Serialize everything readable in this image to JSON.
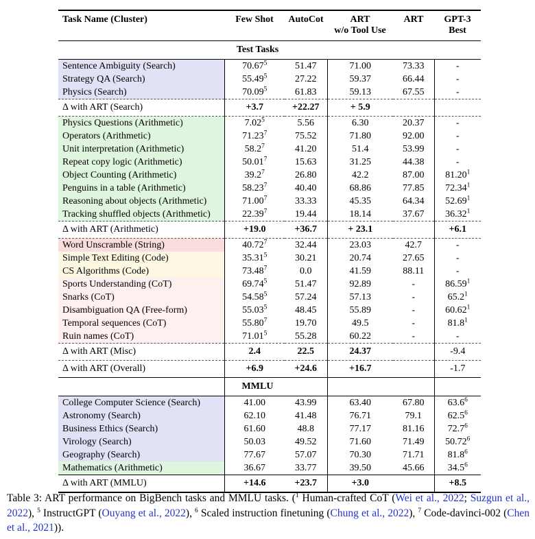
{
  "colors": {
    "search": "#e2e2f6",
    "arithmetic": "#e0f5e0",
    "string": "#fadcdc",
    "code": "#fcf8e2",
    "cot": "#fdf0ee",
    "link": "#2533cb"
  },
  "table": {
    "columns": [
      {
        "label": "Task Name (Cluster)"
      },
      {
        "label": "Few Shot"
      },
      {
        "label": "AutoCot"
      },
      {
        "label": "ART",
        "label2": "w/o Tool Use"
      },
      {
        "label": "ART"
      },
      {
        "label": "GPT-3",
        "label2": "Best"
      }
    ],
    "rows": [
      {
        "type": "section",
        "label": "Test Tasks",
        "vlines": false,
        "sep": "solid"
      },
      {
        "type": "data",
        "task": "Sentence Ambiguity (Search)",
        "bg": "search",
        "cells": [
          {
            "v": "70.67",
            "sup": "5"
          },
          {
            "v": "51.47"
          },
          {
            "v": "71.00"
          },
          {
            "v": "73.33"
          },
          {
            "v": "-"
          }
        ]
      },
      {
        "type": "data",
        "task": "Strategy QA (Search)",
        "bg": "search",
        "cells": [
          {
            "v": "55.49",
            "sup": "5"
          },
          {
            "v": "27.22"
          },
          {
            "v": "59.37"
          },
          {
            "v": "66.44"
          },
          {
            "v": "-"
          }
        ]
      },
      {
        "type": "data",
        "task": "Physics (Search)",
        "bg": "search",
        "sep": "dashed",
        "cells": [
          {
            "v": "70.09",
            "sup": "5"
          },
          {
            "v": "61.83"
          },
          {
            "v": "59.13"
          },
          {
            "v": "67.55"
          },
          {
            "v": "-"
          }
        ]
      },
      {
        "type": "delta",
        "task": "Δ with ART (Search)",
        "sep": "dashed",
        "cells": [
          {
            "v": "+3.7"
          },
          {
            "v": "+22.27"
          },
          {
            "v": "+ 5.9"
          },
          {
            "v": ""
          },
          {
            "v": ""
          }
        ]
      },
      {
        "type": "data",
        "task": "Physics Questions (Arithmetic)",
        "bg": "arithmetic",
        "cells": [
          {
            "v": "7.02",
            "sup": "5"
          },
          {
            "v": "5.56"
          },
          {
            "v": "6.30"
          },
          {
            "v": "20.37"
          },
          {
            "v": "-"
          }
        ]
      },
      {
        "type": "data",
        "task": "Operators (Arithmetic)",
        "bg": "arithmetic",
        "cells": [
          {
            "v": "71.23",
            "sup": "7"
          },
          {
            "v": "75.52"
          },
          {
            "v": "71.80"
          },
          {
            "v": "92.00"
          },
          {
            "v": "-"
          }
        ]
      },
      {
        "type": "data",
        "task": "Unit interpretation (Arithmetic)",
        "bg": "arithmetic",
        "cells": [
          {
            "v": "58.2",
            "sup": "7"
          },
          {
            "v": "41.20"
          },
          {
            "v": "51.4"
          },
          {
            "v": "53.99"
          },
          {
            "v": "-"
          }
        ]
      },
      {
        "type": "data",
        "task": "Repeat copy logic (Arithmetic)",
        "bg": "arithmetic",
        "cells": [
          {
            "v": "50.01",
            "sup": "7"
          },
          {
            "v": "15.63"
          },
          {
            "v": "31.25"
          },
          {
            "v": "44.38"
          },
          {
            "v": "-"
          }
        ]
      },
      {
        "type": "data",
        "task": "Object Counting (Arithmetic)",
        "bg": "arithmetic",
        "cells": [
          {
            "v": "39.2",
            "sup": "7"
          },
          {
            "v": "26.80"
          },
          {
            "v": "42.2"
          },
          {
            "v": "87.00"
          },
          {
            "v": "81.20",
            "sup": "1"
          }
        ]
      },
      {
        "type": "data",
        "task": "Penguins in a table (Arithmetic)",
        "bg": "arithmetic",
        "cells": [
          {
            "v": "58.23",
            "sup": "7"
          },
          {
            "v": "40.40"
          },
          {
            "v": "68.86"
          },
          {
            "v": "77.85"
          },
          {
            "v": "72.34",
            "sup": "1"
          }
        ]
      },
      {
        "type": "data",
        "task": "Reasoning about objects (Arithmetic)",
        "bg": "arithmetic",
        "cells": [
          {
            "v": "71.00",
            "sup": "7"
          },
          {
            "v": "33.33"
          },
          {
            "v": "45.35"
          },
          {
            "v": "64.34"
          },
          {
            "v": "52.69",
            "sup": "1"
          }
        ]
      },
      {
        "type": "data",
        "task": "Tracking shuffled objects (Arithmetic)",
        "bg": "arithmetic",
        "sep": "dashed",
        "cells": [
          {
            "v": "22.39",
            "sup": "7"
          },
          {
            "v": "19.44"
          },
          {
            "v": "18.14"
          },
          {
            "v": "37.67"
          },
          {
            "v": "36.32",
            "sup": "1"
          }
        ]
      },
      {
        "type": "delta",
        "task": "Δ with ART (Arithmetic)",
        "sep": "dashed",
        "cells": [
          {
            "v": "+19.0"
          },
          {
            "v": "+36.7"
          },
          {
            "v": "+ 23.1"
          },
          {
            "v": ""
          },
          {
            "v": "+6.1"
          }
        ]
      },
      {
        "type": "data",
        "task": "Word Unscramble (String)",
        "bg": "string",
        "cells": [
          {
            "v": "40.72",
            "sup": "7"
          },
          {
            "v": "32.44"
          },
          {
            "v": "23.03"
          },
          {
            "v": "42.7"
          },
          {
            "v": "-"
          }
        ]
      },
      {
        "type": "data",
        "task": "Simple Text Editing (Code)",
        "bg": "code",
        "cells": [
          {
            "v": "35.31",
            "sup": "5"
          },
          {
            "v": "30.21"
          },
          {
            "v": "20.74"
          },
          {
            "v": "27.65"
          },
          {
            "v": "-"
          }
        ]
      },
      {
        "type": "data",
        "task": "CS Algorithms (Code)",
        "bg": "code",
        "cells": [
          {
            "v": "73.48",
            "sup": "7"
          },
          {
            "v": "0.0"
          },
          {
            "v": "41.59"
          },
          {
            "v": "88.11"
          },
          {
            "v": "-"
          }
        ]
      },
      {
        "type": "data",
        "task": "Sports Understanding (CoT)",
        "bg": "cot",
        "cells": [
          {
            "v": "69.74",
            "sup": "5"
          },
          {
            "v": "51.47"
          },
          {
            "v": "92.89"
          },
          {
            "v": "-"
          },
          {
            "v": "86.59",
            "sup": "1"
          }
        ]
      },
      {
        "type": "data",
        "task": "Snarks (CoT)",
        "bg": "cot",
        "cells": [
          {
            "v": "54.58",
            "sup": "5"
          },
          {
            "v": "57.24"
          },
          {
            "v": "57.13"
          },
          {
            "v": "-"
          },
          {
            "v": "65.2",
            "sup": "1"
          }
        ]
      },
      {
        "type": "data",
        "task": "Disambiguation QA (Free-form)",
        "bg": "cot",
        "cells": [
          {
            "v": "55.03",
            "sup": "5"
          },
          {
            "v": "48.45"
          },
          {
            "v": "55.89"
          },
          {
            "v": "-"
          },
          {
            "v": "60.62",
            "sup": "1"
          }
        ]
      },
      {
        "type": "data",
        "task": "Temporal sequences (CoT)",
        "bg": "cot",
        "cells": [
          {
            "v": "55.80",
            "sup": "7"
          },
          {
            "v": "19.70"
          },
          {
            "v": "49.5"
          },
          {
            "v": "-"
          },
          {
            "v": "81.8",
            "sup": "1"
          }
        ]
      },
      {
        "type": "data",
        "task": "Ruin names (CoT)",
        "bg": "cot",
        "sep": "dashed",
        "cells": [
          {
            "v": "71.01",
            "sup": "5"
          },
          {
            "v": "55.28"
          },
          {
            "v": "60.22"
          },
          {
            "v": "-"
          },
          {
            "v": "-"
          }
        ]
      },
      {
        "type": "delta",
        "task": "Δ with ART (Misc)",
        "sep": "dashed",
        "cells": [
          {
            "v": "2.4"
          },
          {
            "v": "22.5"
          },
          {
            "v": "24.37"
          },
          {
            "v": ""
          },
          {
            "v": "-9.4",
            "b": false
          }
        ]
      },
      {
        "type": "delta",
        "task": "Δ with ART (Overall)",
        "sep": "solid",
        "cells": [
          {
            "v": "+6.9"
          },
          {
            "v": "+24.6"
          },
          {
            "v": "+16.7"
          },
          {
            "v": ""
          },
          {
            "v": "-1.7",
            "b": false
          }
        ]
      },
      {
        "type": "section",
        "label": "MMLU",
        "vlines": true,
        "sep": "solid"
      },
      {
        "type": "data",
        "task": "College Computer Science (Search)",
        "bg": "search",
        "cells": [
          {
            "v": "41.00"
          },
          {
            "v": "43.99"
          },
          {
            "v": "63.40"
          },
          {
            "v": "67.80"
          },
          {
            "v": "63.6",
            "sup": "6"
          }
        ]
      },
      {
        "type": "data",
        "task": "Astronomy (Search)",
        "bg": "search",
        "cells": [
          {
            "v": "62.10"
          },
          {
            "v": "41.48"
          },
          {
            "v": "76.71"
          },
          {
            "v": "79.1"
          },
          {
            "v": "62.5",
            "sup": "6"
          }
        ]
      },
      {
        "type": "data",
        "task": "Business Ethics (Search)",
        "bg": "search",
        "cells": [
          {
            "v": "61.60"
          },
          {
            "v": "48.8"
          },
          {
            "v": "77.17"
          },
          {
            "v": "81.16"
          },
          {
            "v": "72.7",
            "sup": "6"
          }
        ]
      },
      {
        "type": "data",
        "task": "Virology (Search)",
        "bg": "search",
        "cells": [
          {
            "v": "50.03"
          },
          {
            "v": "49.52"
          },
          {
            "v": "71.60"
          },
          {
            "v": "71.49"
          },
          {
            "v": "50.72",
            "sup": "6"
          }
        ]
      },
      {
        "type": "data",
        "task": "Geography (Search)",
        "bg": "search",
        "cells": [
          {
            "v": "77.67"
          },
          {
            "v": "57.07"
          },
          {
            "v": "70.30"
          },
          {
            "v": "71.71"
          },
          {
            "v": "81.8",
            "sup": "6"
          }
        ]
      },
      {
        "type": "data",
        "task": "Mathematics (Arithmetic)",
        "bg": "arithmetic",
        "sep": "solid",
        "cells": [
          {
            "v": "36.67"
          },
          {
            "v": "33.77"
          },
          {
            "v": "39.50"
          },
          {
            "v": "45.66"
          },
          {
            "v": "34.5",
            "sup": "6"
          }
        ]
      },
      {
        "type": "delta",
        "task": "Δ with ART (MMLU)",
        "cells": [
          {
            "v": "+14.6"
          },
          {
            "v": "+23.7"
          },
          {
            "v": "+3.0"
          },
          {
            "v": ""
          },
          {
            "v": "+8.5"
          }
        ]
      }
    ]
  },
  "caption": {
    "segments": [
      {
        "t": "Table 3: ART performance on BigBench tasks and MMLU tasks. ("
      },
      {
        "t": "1",
        "sup": true
      },
      {
        "t": " Human-crafted CoT ("
      },
      {
        "t": "Wei et al., 2022",
        "link": true
      },
      {
        "t": "; "
      },
      {
        "t": "Suzgun et al., 2022",
        "link": true
      },
      {
        "t": "), "
      },
      {
        "t": "5",
        "sup": true
      },
      {
        "t": " InstructGPT ("
      },
      {
        "t": "Ouyang et al., 2022",
        "link": true
      },
      {
        "t": "), "
      },
      {
        "t": "6",
        "sup": true
      },
      {
        "t": " Scaled instruction finetuning ("
      },
      {
        "t": "Chung et al., 2022",
        "link": true
      },
      {
        "t": "), "
      },
      {
        "t": "7",
        "sup": true
      },
      {
        "t": " Code-davinci-002 ("
      },
      {
        "t": "Chen et al., 2021",
        "link": true
      },
      {
        "t": "))."
      }
    ]
  }
}
